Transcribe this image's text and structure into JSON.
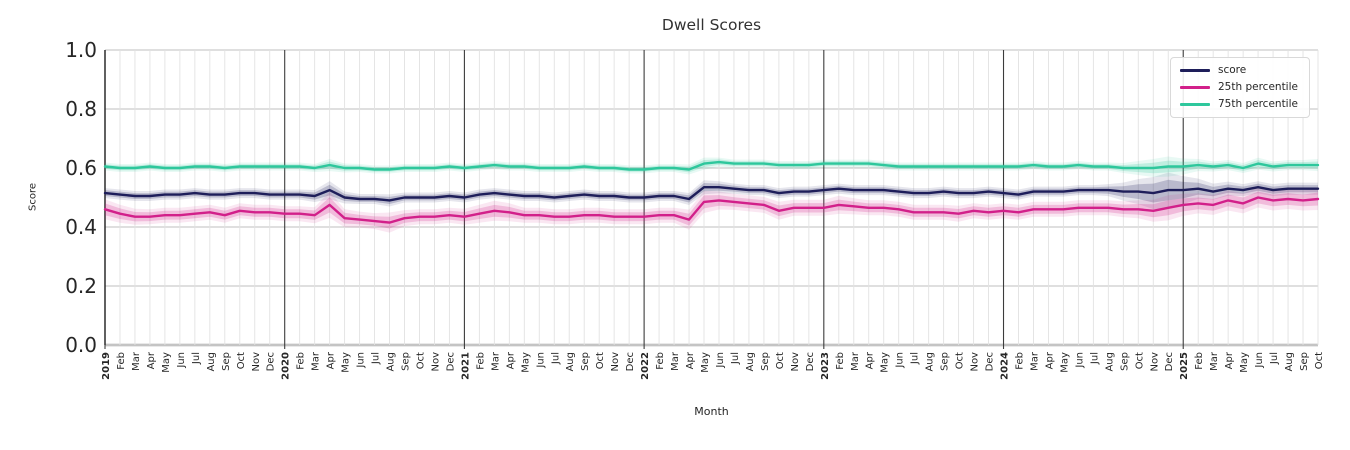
{
  "title": "Dwell Scores",
  "axes": {
    "xlabel": "Month",
    "ylabel": "Score",
    "y_ticks": [
      "0.0",
      "0.2",
      "0.4",
      "0.6",
      "0.8",
      "1.0"
    ]
  },
  "legend": {
    "position": "upper right",
    "items": [
      "score",
      "25th percentile",
      "75th percentile"
    ]
  },
  "chart_data": {
    "type": "line",
    "title": "Dwell Scores",
    "xlabel": "Month",
    "ylabel": "Score",
    "ylim": [
      0.0,
      1.0
    ],
    "grid": true,
    "legend_position": "upper right",
    "x_labels": [
      "2019",
      "Feb",
      "Mar",
      "Apr",
      "May",
      "Jun",
      "Jul",
      "Aug",
      "Sep",
      "Oct",
      "Nov",
      "Dec",
      "2020",
      "Feb",
      "Mar",
      "Apr",
      "May",
      "Jun",
      "Jul",
      "Aug",
      "Sep",
      "Oct",
      "Nov",
      "Dec",
      "2021",
      "Feb",
      "Mar",
      "Apr",
      "May",
      "Jun",
      "Jul",
      "Aug",
      "Sep",
      "Oct",
      "Nov",
      "Dec",
      "2022",
      "Feb",
      "Mar",
      "Apr",
      "May",
      "Jun",
      "Jul",
      "Aug",
      "Sep",
      "Oct",
      "Nov",
      "Dec",
      "2023",
      "Feb",
      "Mar",
      "Apr",
      "May",
      "Jun",
      "Jul",
      "Aug",
      "Sep",
      "Oct",
      "Nov",
      "Dec",
      "2024",
      "Feb",
      "Mar",
      "Apr",
      "May",
      "Jun",
      "Jul",
      "Aug",
      "Sep",
      "Oct",
      "Nov",
      "Dec",
      "2025",
      "Feb",
      "Mar",
      "Apr",
      "May",
      "Jun",
      "Jul",
      "Aug",
      "Sep",
      "Oct"
    ],
    "series": [
      {
        "name": "score",
        "color": "#1e1e5a",
        "values": [
          0.515,
          0.51,
          0.505,
          0.505,
          0.51,
          0.51,
          0.515,
          0.51,
          0.51,
          0.515,
          0.515,
          0.51,
          0.51,
          0.51,
          0.505,
          0.525,
          0.5,
          0.495,
          0.495,
          0.49,
          0.5,
          0.5,
          0.5,
          0.505,
          0.5,
          0.51,
          0.515,
          0.51,
          0.505,
          0.505,
          0.5,
          0.505,
          0.51,
          0.505,
          0.505,
          0.5,
          0.5,
          0.505,
          0.505,
          0.495,
          0.535,
          0.535,
          0.53,
          0.525,
          0.525,
          0.515,
          0.52,
          0.52,
          0.525,
          0.53,
          0.525,
          0.525,
          0.525,
          0.52,
          0.515,
          0.515,
          0.52,
          0.515,
          0.515,
          0.52,
          0.515,
          0.51,
          0.52,
          0.52,
          0.52,
          0.525,
          0.525,
          0.525,
          0.52,
          0.52,
          0.515,
          0.525,
          0.525,
          0.53,
          0.52,
          0.53,
          0.525,
          0.535,
          0.525,
          0.53,
          0.53,
          0.53
        ],
        "band_halfwidth": [
          0.01,
          0.01,
          0.01,
          0.01,
          0.01,
          0.01,
          0.01,
          0.01,
          0.01,
          0.01,
          0.01,
          0.01,
          0.01,
          0.01,
          0.012,
          0.018,
          0.012,
          0.01,
          0.01,
          0.012,
          0.01,
          0.01,
          0.01,
          0.01,
          0.01,
          0.01,
          0.01,
          0.01,
          0.01,
          0.01,
          0.01,
          0.01,
          0.01,
          0.01,
          0.01,
          0.01,
          0.01,
          0.01,
          0.01,
          0.012,
          0.014,
          0.012,
          0.01,
          0.01,
          0.01,
          0.01,
          0.01,
          0.01,
          0.01,
          0.01,
          0.01,
          0.01,
          0.01,
          0.01,
          0.01,
          0.01,
          0.01,
          0.01,
          0.01,
          0.01,
          0.01,
          0.01,
          0.01,
          0.01,
          0.01,
          0.01,
          0.01,
          0.012,
          0.018,
          0.025,
          0.032,
          0.035,
          0.028,
          0.02,
          0.016,
          0.014,
          0.012,
          0.012,
          0.012,
          0.012,
          0.012,
          0.012
        ]
      },
      {
        "name": "25th percentile",
        "color": "#d2208a",
        "values": [
          0.46,
          0.445,
          0.435,
          0.435,
          0.44,
          0.44,
          0.445,
          0.45,
          0.44,
          0.455,
          0.45,
          0.45,
          0.445,
          0.445,
          0.44,
          0.475,
          0.43,
          0.425,
          0.42,
          0.415,
          0.43,
          0.435,
          0.435,
          0.44,
          0.435,
          0.445,
          0.455,
          0.45,
          0.44,
          0.44,
          0.435,
          0.435,
          0.44,
          0.44,
          0.435,
          0.435,
          0.435,
          0.44,
          0.44,
          0.425,
          0.485,
          0.49,
          0.485,
          0.48,
          0.475,
          0.455,
          0.465,
          0.465,
          0.465,
          0.475,
          0.47,
          0.465,
          0.465,
          0.46,
          0.45,
          0.45,
          0.45,
          0.445,
          0.455,
          0.45,
          0.455,
          0.45,
          0.46,
          0.46,
          0.46,
          0.465,
          0.465,
          0.465,
          0.46,
          0.46,
          0.455,
          0.465,
          0.475,
          0.48,
          0.475,
          0.49,
          0.48,
          0.5,
          0.49,
          0.495,
          0.49,
          0.495
        ],
        "band_halfwidth": [
          0.02,
          0.018,
          0.016,
          0.015,
          0.015,
          0.015,
          0.015,
          0.015,
          0.015,
          0.015,
          0.015,
          0.015,
          0.015,
          0.015,
          0.016,
          0.026,
          0.018,
          0.016,
          0.016,
          0.02,
          0.016,
          0.015,
          0.015,
          0.015,
          0.016,
          0.018,
          0.02,
          0.018,
          0.015,
          0.015,
          0.015,
          0.015,
          0.015,
          0.015,
          0.015,
          0.015,
          0.015,
          0.015,
          0.015,
          0.02,
          0.022,
          0.018,
          0.016,
          0.016,
          0.016,
          0.018,
          0.016,
          0.016,
          0.016,
          0.018,
          0.016,
          0.015,
          0.015,
          0.015,
          0.015,
          0.015,
          0.015,
          0.016,
          0.015,
          0.015,
          0.015,
          0.015,
          0.015,
          0.015,
          0.015,
          0.015,
          0.015,
          0.015,
          0.016,
          0.018,
          0.022,
          0.025,
          0.022,
          0.02,
          0.02,
          0.02,
          0.02,
          0.02,
          0.02,
          0.02,
          0.02,
          0.022
        ]
      },
      {
        "name": "75th percentile",
        "color": "#2ec79c",
        "values": [
          0.605,
          0.6,
          0.6,
          0.605,
          0.6,
          0.6,
          0.605,
          0.605,
          0.6,
          0.605,
          0.605,
          0.605,
          0.605,
          0.605,
          0.6,
          0.61,
          0.6,
          0.6,
          0.595,
          0.595,
          0.6,
          0.6,
          0.6,
          0.605,
          0.6,
          0.605,
          0.61,
          0.605,
          0.605,
          0.6,
          0.6,
          0.6,
          0.605,
          0.6,
          0.6,
          0.595,
          0.595,
          0.6,
          0.6,
          0.595,
          0.615,
          0.62,
          0.615,
          0.615,
          0.615,
          0.61,
          0.61,
          0.61,
          0.615,
          0.615,
          0.615,
          0.615,
          0.61,
          0.605,
          0.605,
          0.605,
          0.605,
          0.605,
          0.605,
          0.605,
          0.605,
          0.605,
          0.61,
          0.605,
          0.605,
          0.61,
          0.605,
          0.605,
          0.6,
          0.6,
          0.6,
          0.605,
          0.605,
          0.61,
          0.605,
          0.61,
          0.6,
          0.615,
          0.605,
          0.61,
          0.61,
          0.61
        ],
        "band_halfwidth": [
          0.008,
          0.008,
          0.008,
          0.008,
          0.008,
          0.008,
          0.008,
          0.008,
          0.008,
          0.008,
          0.008,
          0.008,
          0.008,
          0.008,
          0.008,
          0.012,
          0.009,
          0.008,
          0.008,
          0.008,
          0.008,
          0.008,
          0.008,
          0.008,
          0.008,
          0.008,
          0.008,
          0.008,
          0.008,
          0.008,
          0.008,
          0.008,
          0.008,
          0.008,
          0.008,
          0.008,
          0.008,
          0.008,
          0.008,
          0.01,
          0.012,
          0.009,
          0.008,
          0.008,
          0.008,
          0.008,
          0.008,
          0.008,
          0.008,
          0.008,
          0.008,
          0.008,
          0.008,
          0.008,
          0.008,
          0.008,
          0.008,
          0.008,
          0.008,
          0.008,
          0.008,
          0.008,
          0.008,
          0.008,
          0.008,
          0.008,
          0.008,
          0.008,
          0.01,
          0.014,
          0.018,
          0.02,
          0.016,
          0.012,
          0.01,
          0.01,
          0.01,
          0.012,
          0.01,
          0.01,
          0.01,
          0.012
        ]
      }
    ]
  },
  "style": {
    "spine_color": "#262626",
    "grid_h_color": "#cccccc",
    "grid_zero_color": "#c4c4c4",
    "grid_month_color": "#e2e2e2",
    "grid_year_color": "#3c3c3c",
    "tick_label_color": "#262626",
    "title_color": "#323232"
  }
}
